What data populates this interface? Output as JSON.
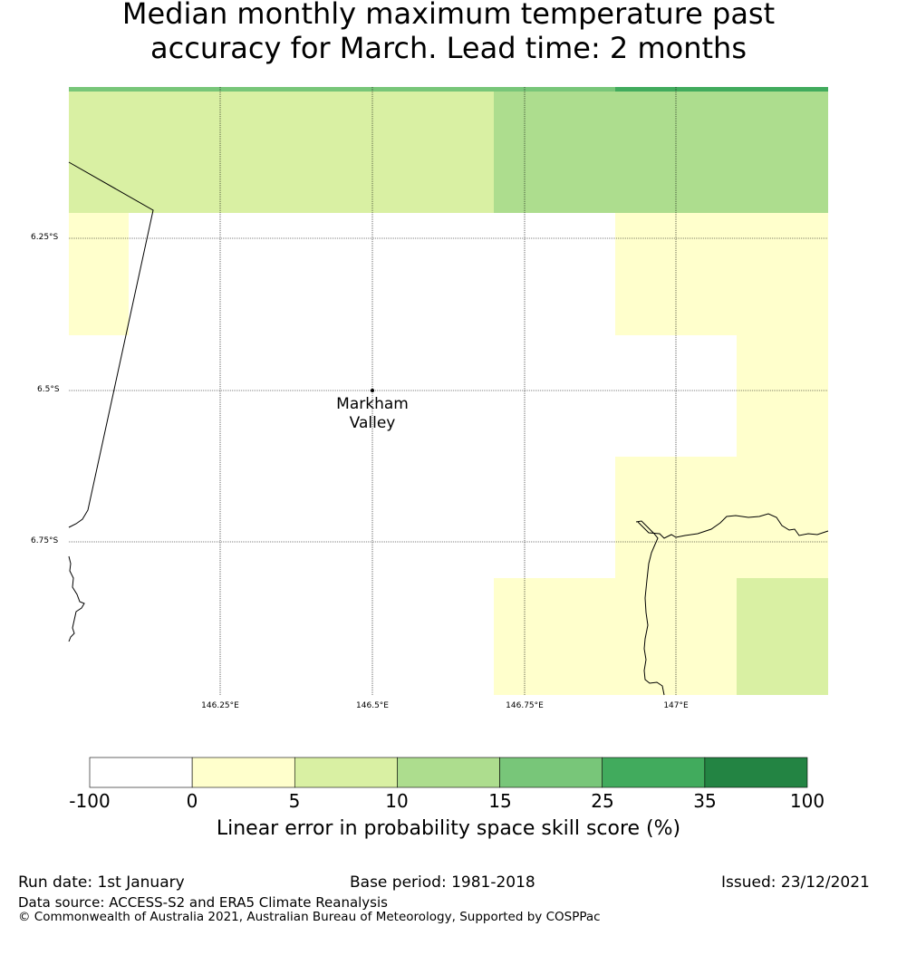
{
  "title": {
    "line1": "Median monthly maximum temperature past",
    "line2": "accuracy for March. Lead time: 2 months"
  },
  "map": {
    "lat_labels": [
      "6.25°S",
      "6.5°S",
      "6.75°S"
    ],
    "lon_labels": [
      "146.25°E",
      "146.5°E",
      "146.75°E",
      "147°E"
    ],
    "place": {
      "name_line1": "Markham",
      "name_line2": "Valley"
    }
  },
  "colorbar": {
    "title": "Linear error in probability space skill score (%)",
    "ticks": [
      "-100",
      "0",
      "5",
      "10",
      "15",
      "25",
      "35",
      "100"
    ],
    "colors": [
      "#ffffff",
      "#ffffcc",
      "#d9f0a3",
      "#addd8e",
      "#78c679",
      "#41ab5d",
      "#238443"
    ]
  },
  "footer": {
    "run_date": "Run date: 1st January",
    "base_period": "Base period: 1981-2018",
    "issued": "Issued: 23/12/2021",
    "data_source": "Data source: ACCESS-S2 and ERA5 Climate Reanalysis",
    "copyright": "© Commonwealth of Australia 2021, Australian Bureau of Meteorology, Supported by COSPPac"
  }
}
